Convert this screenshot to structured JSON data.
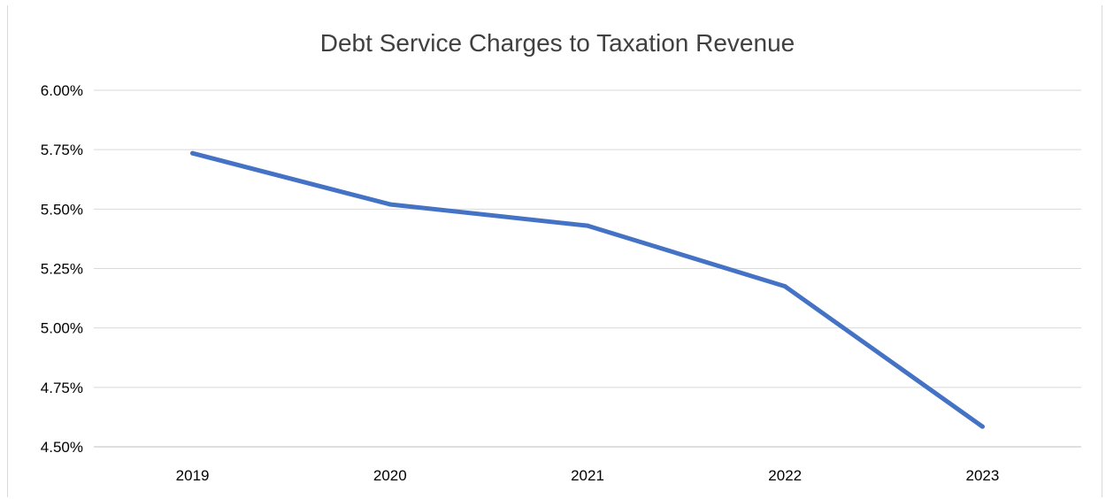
{
  "chart_data": {
    "type": "line",
    "title": "Debt Service Charges to Taxation Revenue",
    "xlabel": "",
    "ylabel": "",
    "categories": [
      "2019",
      "2020",
      "2021",
      "2022",
      "2023"
    ],
    "series": [
      {
        "values": [
          5.735,
          5.52,
          5.43,
          5.175,
          4.585
        ]
      }
    ],
    "ylim": [
      4.5,
      6.0
    ],
    "yticks": [
      "4.50%",
      "4.75%",
      "5.00%",
      "5.25%",
      "5.50%",
      "5.75%",
      "6.00%"
    ],
    "ytick_values": [
      4.5,
      4.75,
      5.0,
      5.25,
      5.5,
      5.75,
      6.0
    ],
    "grid": true,
    "legend": "none",
    "colors": {
      "line": "#4472C4",
      "grid": "#d9d9d9",
      "axis": "#bfbfbf",
      "text": "#404040"
    }
  }
}
